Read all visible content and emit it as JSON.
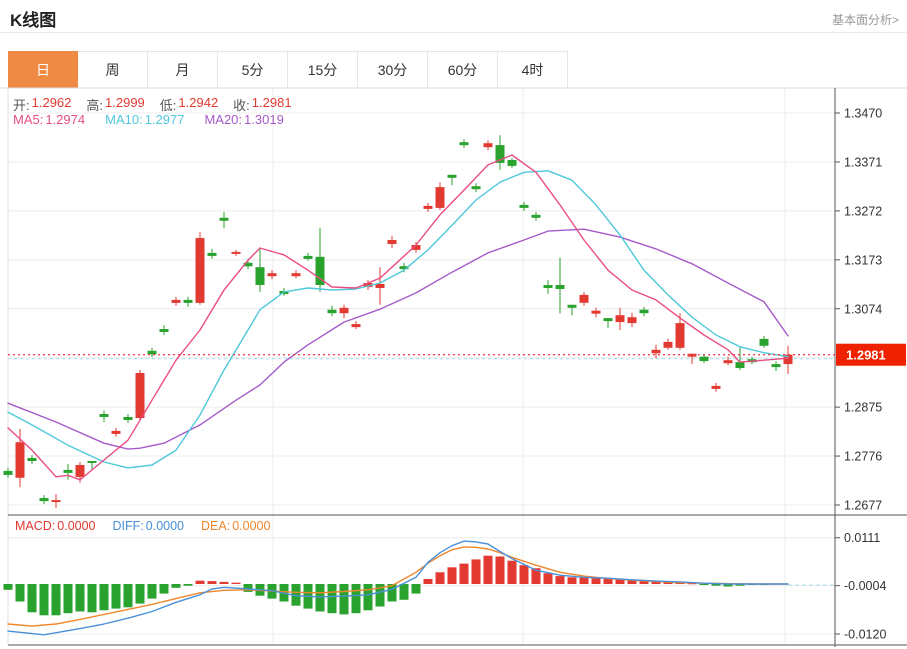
{
  "header": {
    "title": "K线图",
    "link": "基本面分析>"
  },
  "tabs": [
    {
      "label": "日",
      "active": true
    },
    {
      "label": "周",
      "active": false
    },
    {
      "label": "月",
      "active": false
    },
    {
      "label": "5分",
      "active": false
    },
    {
      "label": "15分",
      "active": false
    },
    {
      "label": "30分",
      "active": false
    },
    {
      "label": "60分",
      "active": false
    },
    {
      "label": "4时",
      "active": false
    }
  ],
  "info_bar": {
    "open_label": "开:",
    "open_value": "1.2962",
    "high_label": "高:",
    "high_value": "1.2999",
    "low_label": "低:",
    "low_value": "1.2942",
    "close_label": "收:",
    "close_value": "1.2981"
  },
  "ma_bar": {
    "ma5_label": "MA5:",
    "ma5_value": "1.2974",
    "ma10_label": "MA10:",
    "ma10_value": "1.2977",
    "ma20_label": "MA20:",
    "ma20_value": "1.3019"
  },
  "macd_bar": {
    "macd_label": "MACD:",
    "macd_value": "0.0000",
    "diff_label": "DIFF:",
    "diff_value": "0.0000",
    "dea_label": "DEA:",
    "dea_value": "0.0000"
  },
  "colors": {
    "up": "#e23a30",
    "down": "#2aa22e",
    "badge": "#ee2200",
    "ma5": "#ea4d84",
    "ma10": "#4fc8dc",
    "ma20": "#a55bc8",
    "diff": "#4a90d9",
    "dea": "#f0862c",
    "price_dotted": "#ef4455",
    "ref_dashed": "#aadde8",
    "grid": "#ececec",
    "frame_light": "#dcdcdc",
    "frame_dark": "#555",
    "tick_text": "#333",
    "tab_active": "#ee8a44",
    "ohlc_value": "#e23a30"
  },
  "chart_data": {
    "type": "candlestick_with_macd",
    "title": "K线图 daily candlestick with MA5/MA10/MA20 and MACD panel",
    "price_axis": {
      "ticks": [
        {
          "label": "1.3470",
          "value": 1.347
        },
        {
          "label": "1.3371",
          "value": 1.3371
        },
        {
          "label": "1.3272",
          "value": 1.3272
        },
        {
          "label": "1.3173",
          "value": 1.3173
        },
        {
          "label": "1.3074",
          "value": 1.3074
        },
        {
          "label": "1.2875",
          "value": 1.2875
        },
        {
          "label": "1.2776",
          "value": 1.2776
        },
        {
          "label": "1.2677",
          "value": 1.2677
        }
      ],
      "range": [
        1.2677,
        1.347
      ],
      "current_price": 1.2981,
      "current_price_label": "1.2981",
      "reference_line": 1.2975
    },
    "macd_axis": {
      "ticks": [
        {
          "label": "0.0111",
          "value": 0.0111
        },
        {
          "label": "-0.0004",
          "value": -0.0004
        },
        {
          "label": "-0.0120",
          "value": -0.012
        }
      ],
      "range": [
        -0.0148,
        0.0119
      ]
    },
    "legend": [
      "MA5",
      "MA10",
      "MA20",
      "MACD",
      "DIFF",
      "DEA"
    ],
    "candles_format": "[open, high, low, close] ; red when close>=open, green when close<open",
    "candles": [
      [
        1.2746,
        1.2752,
        1.2732,
        1.2738
      ],
      [
        1.2732,
        1.2831,
        1.2713,
        1.2804
      ],
      [
        1.2772,
        1.2778,
        1.276,
        1.2766
      ],
      [
        1.2691,
        1.2697,
        1.2679,
        1.2685
      ],
      [
        1.2683,
        1.2699,
        1.2671,
        1.2687
      ],
      [
        1.2748,
        1.276,
        1.2728,
        1.2742
      ],
      [
        1.2734,
        1.2764,
        1.2722,
        1.2758
      ],
      [
        1.2766,
        1.2766,
        1.2748,
        1.2762
      ],
      [
        1.2861,
        1.2869,
        1.2845,
        1.2855
      ],
      [
        1.2821,
        1.2833,
        1.2815,
        1.2827
      ],
      [
        1.2855,
        1.2861,
        1.2843,
        1.2849
      ],
      [
        1.2853,
        1.295,
        1.2849,
        1.2944
      ],
      [
        1.2989,
        1.2995,
        1.2976,
        1.2982
      ],
      [
        1.3033,
        1.3041,
        1.3021,
        1.3027
      ],
      [
        1.3086,
        1.3098,
        1.308,
        1.3092
      ],
      [
        1.3092,
        1.3098,
        1.3078,
        1.3086
      ],
      [
        1.3086,
        1.3229,
        1.3082,
        1.3217
      ],
      [
        1.3187,
        1.3195,
        1.3175,
        1.3181
      ],
      [
        1.3258,
        1.327,
        1.3237,
        1.3252
      ],
      [
        1.3185,
        1.3193,
        1.3181,
        1.3189
      ],
      [
        1.3167,
        1.3175,
        1.3154,
        1.316
      ],
      [
        1.3158,
        1.3197,
        1.3108,
        1.3122
      ],
      [
        1.314,
        1.3152,
        1.3134,
        1.3146
      ],
      [
        1.311,
        1.3116,
        1.31,
        1.3104
      ],
      [
        1.314,
        1.3152,
        1.3136,
        1.3146
      ],
      [
        1.3181,
        1.3187,
        1.3171,
        1.3175
      ],
      [
        1.3179,
        1.3237,
        1.3108,
        1.3122
      ],
      [
        1.3072,
        1.308,
        1.3059,
        1.3065
      ],
      [
        1.3065,
        1.3082,
        1.3055,
        1.3076
      ],
      [
        1.3037,
        1.3049,
        1.3033,
        1.3043
      ],
      [
        1.3118,
        1.3132,
        1.3112,
        1.3126
      ],
      [
        1.3116,
        1.3158,
        1.3082,
        1.3124
      ],
      [
        1.3205,
        1.3221,
        1.3197,
        1.3213
      ],
      [
        1.316,
        1.3167,
        1.3148,
        1.3154
      ],
      [
        1.3193,
        1.3209,
        1.3187,
        1.3203
      ],
      [
        1.3276,
        1.3288,
        1.327,
        1.3282
      ],
      [
        1.3278,
        1.333,
        1.3274,
        1.332
      ],
      [
        1.3345,
        1.3345,
        1.3324,
        1.3339
      ],
      [
        1.3411,
        1.3417,
        1.3399,
        1.3405
      ],
      [
        1.3322,
        1.3328,
        1.331,
        1.3316
      ],
      [
        1.3401,
        1.3415,
        1.3395,
        1.3409
      ],
      [
        1.3405,
        1.3425,
        1.3355,
        1.3369
      ],
      [
        1.3375,
        1.3379,
        1.3359,
        1.3363
      ],
      [
        1.3284,
        1.329,
        1.3272,
        1.3278
      ],
      [
        1.3264,
        1.327,
        1.3252,
        1.3258
      ],
      [
        1.3122,
        1.3132,
        1.3104,
        1.3116
      ],
      [
        1.3122,
        1.3177,
        1.3065,
        1.3114
      ],
      [
        1.3082,
        1.3082,
        1.3061,
        1.3076
      ],
      [
        1.3086,
        1.3108,
        1.308,
        1.3102
      ],
      [
        1.3064,
        1.3076,
        1.3057,
        1.307
      ],
      [
        1.3055,
        1.3055,
        1.3035,
        1.3049
      ],
      [
        1.3047,
        1.3076,
        1.3031,
        1.3061
      ],
      [
        1.3045,
        1.3066,
        1.3037,
        1.3057
      ],
      [
        1.3072,
        1.3078,
        1.3059,
        1.3065
      ],
      [
        1.2984,
        1.3001,
        1.2974,
        1.2991
      ],
      [
        1.2995,
        1.3013,
        1.2991,
        1.3007
      ],
      [
        1.2995,
        1.3065,
        1.2991,
        1.3045
      ],
      [
        1.2977,
        1.2983,
        1.2962,
        1.2983
      ],
      [
        1.2977,
        1.2983,
        1.2964,
        1.2968
      ],
      [
        1.2912,
        1.2924,
        1.2906,
        1.2918
      ],
      [
        1.2964,
        1.2977,
        1.296,
        1.297
      ],
      [
        1.2966,
        1.2997,
        1.295,
        1.2954
      ],
      [
        1.2972,
        1.2977,
        1.2962,
        1.2966
      ],
      [
        1.3013,
        1.3019,
        1.2995,
        1.2999
      ],
      [
        1.2962,
        1.2968,
        1.2948,
        1.2956
      ],
      [
        1.2962,
        1.2999,
        1.2942,
        1.2981
      ]
    ],
    "ma5": [
      [
        0,
        1.2833
      ],
      [
        2,
        1.2788
      ],
      [
        4,
        1.2734
      ],
      [
        5,
        1.2737
      ],
      [
        6,
        1.2728
      ],
      [
        8,
        1.2768
      ],
      [
        10,
        1.2808
      ],
      [
        12,
        1.2889
      ],
      [
        14,
        1.297
      ],
      [
        16,
        1.3031
      ],
      [
        18,
        1.3112
      ],
      [
        20,
        1.3172
      ],
      [
        21,
        1.3197
      ],
      [
        23,
        1.3183
      ],
      [
        25,
        1.3152
      ],
      [
        27,
        1.3118
      ],
      [
        29,
        1.3116
      ],
      [
        31,
        1.3136
      ],
      [
        32,
        1.3158
      ],
      [
        34,
        1.3203
      ],
      [
        36,
        1.3264
      ],
      [
        38,
        1.3314
      ],
      [
        40,
        1.3365
      ],
      [
        42,
        1.3385
      ],
      [
        44,
        1.335
      ],
      [
        46,
        1.3284
      ],
      [
        48,
        1.3213
      ],
      [
        50,
        1.3152
      ],
      [
        52,
        1.3112
      ],
      [
        54,
        1.3092
      ],
      [
        56,
        1.3055
      ],
      [
        58,
        1.3021
      ],
      [
        60,
        1.2991
      ],
      [
        61,
        1.2966
      ],
      [
        63,
        1.297
      ],
      [
        65,
        1.2974
      ]
    ],
    "ma10": [
      [
        0,
        1.2865
      ],
      [
        2,
        1.2839
      ],
      [
        5,
        1.2798
      ],
      [
        8,
        1.2764
      ],
      [
        10,
        1.2752
      ],
      [
        12,
        1.2758
      ],
      [
        14,
        1.2788
      ],
      [
        16,
        1.2859
      ],
      [
        18,
        1.295
      ],
      [
        20,
        1.3031
      ],
      [
        21,
        1.3072
      ],
      [
        23,
        1.3108
      ],
      [
        25,
        1.3116
      ],
      [
        27,
        1.3112
      ],
      [
        29,
        1.3114
      ],
      [
        31,
        1.3126
      ],
      [
        33,
        1.3152
      ],
      [
        35,
        1.3193
      ],
      [
        37,
        1.3243
      ],
      [
        39,
        1.3294
      ],
      [
        41,
        1.333
      ],
      [
        43,
        1.335
      ],
      [
        45,
        1.3353
      ],
      [
        47,
        1.3334
      ],
      [
        49,
        1.3284
      ],
      [
        51,
        1.3223
      ],
      [
        53,
        1.3152
      ],
      [
        55,
        1.3102
      ],
      [
        57,
        1.3057
      ],
      [
        59,
        1.3021
      ],
      [
        61,
        1.2997
      ],
      [
        63,
        1.2985
      ],
      [
        65,
        1.2977
      ]
    ],
    "ma20": [
      [
        0,
        1.2883
      ],
      [
        4,
        1.2845
      ],
      [
        8,
        1.2802
      ],
      [
        10,
        1.279
      ],
      [
        11,
        1.2792
      ],
      [
        13,
        1.2802
      ],
      [
        16,
        1.2839
      ],
      [
        19,
        1.2889
      ],
      [
        21,
        1.292
      ],
      [
        23,
        1.2966
      ],
      [
        25,
        1.3001
      ],
      [
        28,
        1.3047
      ],
      [
        31,
        1.3073
      ],
      [
        34,
        1.3106
      ],
      [
        37,
        1.3148
      ],
      [
        40,
        1.3187
      ],
      [
        43,
        1.3213
      ],
      [
        45,
        1.3231
      ],
      [
        48,
        1.3235
      ],
      [
        51,
        1.3219
      ],
      [
        54,
        1.3195
      ],
      [
        57,
        1.3165
      ],
      [
        60,
        1.3126
      ],
      [
        63,
        1.3088
      ],
      [
        65,
        1.3019
      ]
    ],
    "macd_hist": [
      -0.0014,
      -0.0042,
      -0.0068,
      -0.0075,
      -0.0075,
      -0.007,
      -0.0066,
      -0.0068,
      -0.0063,
      -0.0059,
      -0.0056,
      -0.0047,
      -0.0035,
      -0.0023,
      -0.0009,
      -0.0004,
      0.0008,
      0.0007,
      0.0005,
      0.0003,
      -0.0019,
      -0.0028,
      -0.0035,
      -0.0042,
      -0.0052,
      -0.0059,
      -0.0066,
      -0.007,
      -0.0073,
      -0.007,
      -0.0063,
      -0.0054,
      -0.0042,
      -0.0038,
      -0.0023,
      0.0012,
      0.0028,
      0.004,
      0.0049,
      0.0059,
      0.0068,
      0.0066,
      0.0056,
      0.0045,
      0.0038,
      0.0026,
      0.0019,
      0.0016,
      0.0016,
      0.0014,
      0.0012,
      0.0012,
      0.0011,
      0.0009,
      0.0007,
      0.0007,
      0.0005,
      0.0002,
      -0.0002,
      -0.0004,
      -0.0006,
      -0.0004,
      -0.0002,
      -0.0001,
      0.0,
      0.0
    ],
    "diff": [
      [
        0,
        -0.0113
      ],
      [
        3,
        -0.0122
      ],
      [
        6,
        -0.0107
      ],
      [
        8,
        -0.0096
      ],
      [
        10,
        -0.0082
      ],
      [
        12,
        -0.0066
      ],
      [
        14,
        -0.0044
      ],
      [
        16,
        -0.0026
      ],
      [
        17,
        -0.0012
      ],
      [
        18,
        -0.0008
      ],
      [
        20,
        -0.0012
      ],
      [
        22,
        -0.0016
      ],
      [
        24,
        -0.0028
      ],
      [
        26,
        -0.0031
      ],
      [
        28,
        -0.0029
      ],
      [
        30,
        -0.0026
      ],
      [
        32,
        -0.0013
      ],
      [
        34,
        0.0016
      ],
      [
        35,
        0.0052
      ],
      [
        36,
        0.0075
      ],
      [
        37,
        0.0092
      ],
      [
        38,
        0.0103
      ],
      [
        39,
        0.0101
      ],
      [
        40,
        0.0096
      ],
      [
        41,
        0.0078
      ],
      [
        42,
        0.0061
      ],
      [
        44,
        0.0033
      ],
      [
        46,
        0.0021
      ],
      [
        48,
        0.0016
      ],
      [
        50,
        0.0014
      ],
      [
        52,
        0.001
      ],
      [
        54,
        0.0007
      ],
      [
        56,
        0.0005
      ],
      [
        58,
        0.0002
      ],
      [
        60,
        0.0
      ],
      [
        62,
        0.0
      ],
      [
        65,
        0.0
      ]
    ],
    "dea": [
      [
        0,
        -0.0096
      ],
      [
        2,
        -0.0101
      ],
      [
        4,
        -0.0096
      ],
      [
        6,
        -0.0085
      ],
      [
        8,
        -0.0073
      ],
      [
        10,
        -0.0061
      ],
      [
        12,
        -0.0049
      ],
      [
        14,
        -0.0035
      ],
      [
        16,
        -0.0021
      ],
      [
        18,
        -0.0015
      ],
      [
        20,
        -0.0014
      ],
      [
        22,
        -0.0017
      ],
      [
        24,
        -0.002
      ],
      [
        26,
        -0.0021
      ],
      [
        28,
        -0.0018
      ],
      [
        30,
        -0.0014
      ],
      [
        32,
        -0.0004
      ],
      [
        33,
        0.0012
      ],
      [
        34,
        0.0028
      ],
      [
        35,
        0.005
      ],
      [
        36,
        0.0068
      ],
      [
        37,
        0.0082
      ],
      [
        38,
        0.0089
      ],
      [
        39,
        0.0088
      ],
      [
        40,
        0.0084
      ],
      [
        41,
        0.0075
      ],
      [
        42,
        0.0064
      ],
      [
        44,
        0.0045
      ],
      [
        46,
        0.0028
      ],
      [
        48,
        0.0019
      ],
      [
        50,
        0.0013
      ],
      [
        52,
        0.0009
      ],
      [
        54,
        0.0006
      ],
      [
        56,
        0.0003
      ],
      [
        58,
        0.0002
      ],
      [
        60,
        0.0001
      ],
      [
        62,
        0.0
      ],
      [
        65,
        0.0
      ]
    ]
  }
}
